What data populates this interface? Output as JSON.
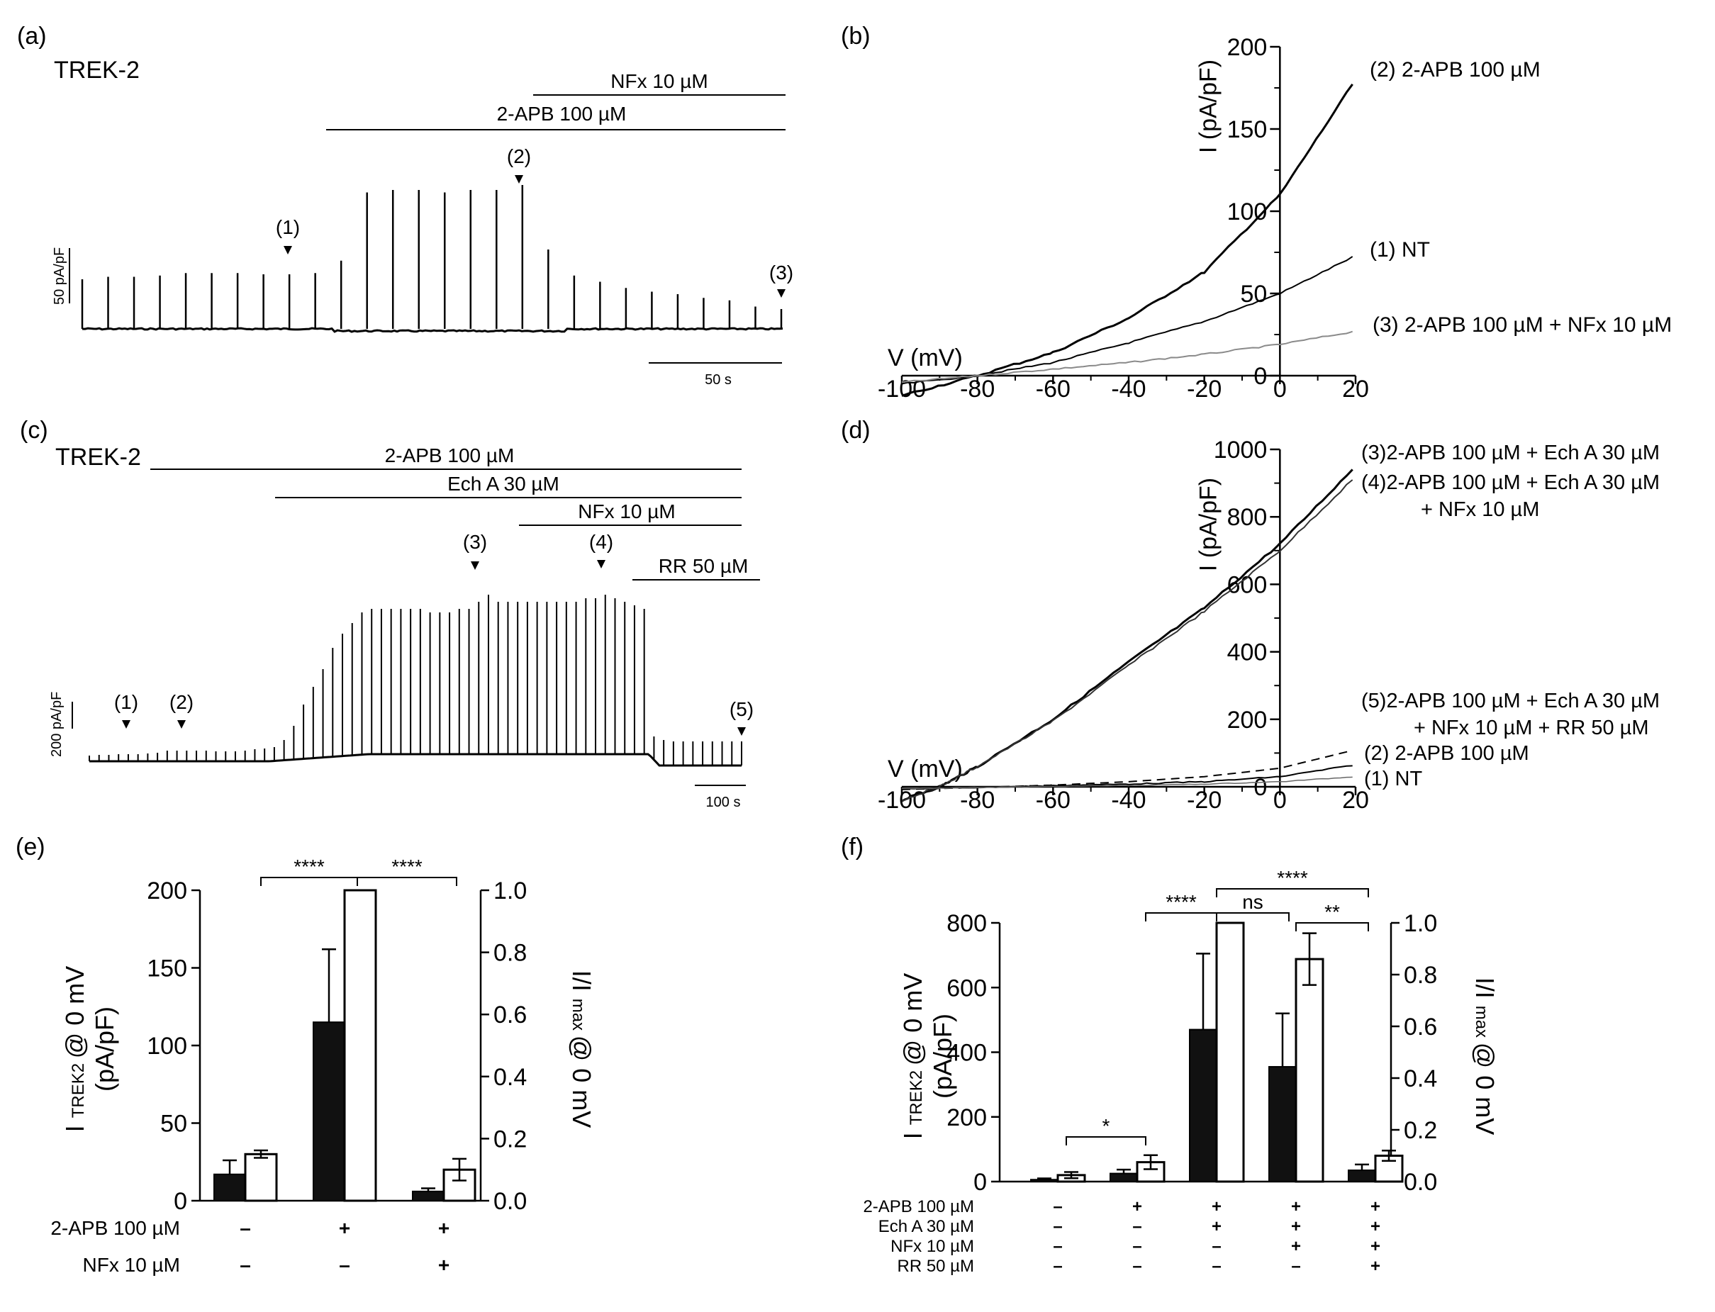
{
  "panels": {
    "a": {
      "letter": "(a)",
      "cell": "TREK-2",
      "bars": [
        {
          "label": "NFx 10 µM"
        },
        {
          "label": "2-APB 100 µM"
        }
      ],
      "markers": [
        "(1)",
        "(2)",
        "(3)"
      ],
      "scale_y": "50 pA/pF",
      "scale_x": "50 s",
      "peaks": [
        40,
        42,
        42,
        43,
        45,
        45,
        45,
        44,
        44,
        45,
        55,
        110,
        112,
        112,
        110,
        112,
        112,
        116,
        64,
        43,
        38,
        33,
        30,
        28,
        25,
        23,
        18,
        16
      ]
    },
    "b": {
      "letter": "(b)",
      "chart_data": {
        "type": "line",
        "xlabel": "V (mV)",
        "ylabel": "I (pA/pF)",
        "xlim": [
          -100,
          20
        ],
        "ylim": [
          0,
          200
        ],
        "xticks": [
          "-100",
          "-80",
          "-60",
          "-40",
          "-20",
          "0",
          "20"
        ],
        "yticks": [
          "0",
          "50",
          "100",
          "150",
          "200"
        ],
        "series": [
          {
            "name": "(2)  2-APB 100 µM",
            "x": [
              -100,
              -80,
              -60,
              -40,
              -20,
              0,
              20
            ],
            "y": [
              -12,
              0,
              14,
              35,
              63,
              110,
              180
            ]
          },
          {
            "name": "(1)  NT",
            "x": [
              -100,
              -80,
              -60,
              -40,
              -20,
              0,
              20
            ],
            "y": [
              -5,
              0,
              8,
              20,
              33,
              50,
              73
            ]
          },
          {
            "name": "(3)   2-APB 100 µM + NFx 10 µM",
            "x": [
              -100,
              -80,
              -60,
              -40,
              -20,
              0,
              20
            ],
            "y": [
              -4,
              0,
              4,
              8,
              13,
              19,
              27
            ]
          }
        ]
      }
    },
    "c": {
      "letter": "(c)",
      "cell": "TREK-2",
      "bars": [
        {
          "label": "2-APB 100 µM"
        },
        {
          "label": "Ech A 30 µM"
        },
        {
          "label": "NFx 10 µM"
        },
        {
          "label": "RR 50 µM"
        }
      ],
      "markers": [
        "(1)",
        "(2)",
        "(3)",
        "(5)"
      ],
      "marker4": "(4)",
      "scale_y": "200 pA/pF",
      "scale_x": "100 s",
      "peaks": [
        8,
        9,
        9,
        10,
        10,
        10,
        11,
        12,
        15,
        15,
        15,
        15,
        15,
        14,
        14,
        14,
        15,
        17,
        18,
        20,
        30,
        50,
        80,
        105,
        130,
        160,
        180,
        195,
        210,
        215,
        215,
        215,
        215,
        215,
        215,
        210,
        210,
        210,
        215,
        215,
        225,
        235,
        225,
        225,
        225,
        225,
        225,
        225,
        225,
        225,
        225,
        230,
        230,
        235,
        230,
        225,
        220,
        215,
        35,
        30,
        28,
        28,
        28,
        28,
        28,
        28,
        28,
        28
      ]
    },
    "d": {
      "letter": "(d)",
      "chart_data": {
        "type": "line",
        "xlabel": "V (mV)",
        "ylabel": "I (pA/pF)",
        "xlim": [
          -100,
          20
        ],
        "ylim": [
          0,
          1000
        ],
        "xticks": [
          "-100",
          "-80",
          "-60",
          "-40",
          "-20",
          "0",
          "20"
        ],
        "yticks": [
          "0",
          "200",
          "400",
          "600",
          "800",
          "1000"
        ],
        "series": [
          {
            "name": "(3)2-APB 100 µM + Ech A 30 µM",
            "x": [
              -100,
              -90,
              -80,
              -60,
              -40,
              -20,
              0,
              20
            ],
            "y": [
              -40,
              0,
              60,
              200,
              370,
              530,
              720,
              950
            ]
          },
          {
            "name": "(4)2-APB 100 µM + Ech A 30 µM",
            "name2": "+ NFx 10 µM",
            "x": [
              -100,
              -90,
              -80,
              -60,
              -40,
              -20,
              0,
              20
            ],
            "y": [
              -40,
              0,
              60,
              195,
              360,
              520,
              700,
              920
            ]
          },
          {
            "name": "(5)2-APB 100 µM + Ech A 30 µM",
            "name2": "+ NFx 10 µM + RR 50  µM",
            "x": [
              -100,
              -80,
              -60,
              -40,
              -20,
              0,
              20
            ],
            "y": [
              -8,
              -2,
              5,
              15,
              30,
              55,
              110
            ]
          },
          {
            "name": "(2) 2-APB 100 µM",
            "x": [
              -100,
              -80,
              -60,
              -40,
              -20,
              0,
              20
            ],
            "y": [
              -6,
              -2,
              3,
              8,
              15,
              30,
              65
            ]
          },
          {
            "name": "(1) NT",
            "x": [
              -100,
              -80,
              -60,
              -40,
              -20,
              0,
              20
            ],
            "y": [
              -5,
              -2,
              1,
              4,
              8,
              15,
              30
            ]
          }
        ]
      }
    },
    "e": {
      "letter": "(e)",
      "chart_data": {
        "type": "bar",
        "ylabel_main": "I",
        "ylabel_sub": "TREK2",
        "ylabel_rest": "@ 0 mV",
        "ylabel_unit": "(pA/pF)",
        "y2label_main": "I/I",
        "y2label_sub": "max",
        "y2label_rest": "@ 0 mV",
        "ylim": [
          0,
          200
        ],
        "y2lim": [
          0,
          1.0
        ],
        "yticks": [
          "0",
          "50",
          "100",
          "150",
          "200"
        ],
        "y2ticks": [
          "0.0",
          "0.2",
          "0.4",
          "0.6",
          "0.8",
          "1.0"
        ],
        "groups": [
          {
            "filled": 17,
            "filled_err": 9,
            "open": 0.15,
            "open_err": 0.012
          },
          {
            "filled": 115,
            "filled_err": 47,
            "open": 1.0,
            "open_err": 0
          },
          {
            "filled": 6,
            "filled_err": 2,
            "open": 0.1,
            "open_err": 0.035
          }
        ],
        "conditions": [
          {
            "label": "2-APB 100 µM",
            "signs": [
              "–",
              "+",
              "+"
            ]
          },
          {
            "label": "NFx 10 µM",
            "signs": [
              "–",
              "–",
              "+"
            ]
          }
        ],
        "significance": [
          "****",
          "****"
        ]
      }
    },
    "f": {
      "letter": "(f)",
      "chart_data": {
        "type": "bar",
        "ylabel_main": "I",
        "ylabel_sub": "TREK2",
        "ylabel_rest": "@ 0 mV",
        "ylabel_unit": "(pA/pF)",
        "y2label_main": "I/I",
        "y2label_sub": "max",
        "y2label_rest": "@ 0 mV",
        "ylim": [
          0,
          800
        ],
        "y2lim": [
          0,
          1.0
        ],
        "yticks": [
          "0",
          "200",
          "400",
          "600",
          "800"
        ],
        "y2ticks": [
          "0.0",
          "0.2",
          "0.4",
          "0.6",
          "0.8",
          "1.0"
        ],
        "groups": [
          {
            "filled": 6,
            "filled_err": 4,
            "open": 0.025,
            "open_err": 0.012
          },
          {
            "filled": 25,
            "filled_err": 12,
            "open": 0.075,
            "open_err": 0.027
          },
          {
            "filled": 470,
            "filled_err": 235,
            "open": 1.0,
            "open_err": 0
          },
          {
            "filled": 355,
            "filled_err": 165,
            "open": 0.86,
            "open_err": 0.1
          },
          {
            "filled": 35,
            "filled_err": 18,
            "open": 0.1,
            "open_err": 0.02
          }
        ],
        "conditions": [
          {
            "label": "2-APB 100 µM",
            "signs": [
              "–",
              "+",
              "+",
              "+",
              "+"
            ]
          },
          {
            "label": "Ech A 30 µM",
            "signs": [
              "–",
              "–",
              "+",
              "+",
              "+"
            ]
          },
          {
            "label": "NFx 10 µM",
            "signs": [
              "–",
              "–",
              "–",
              "+",
              "+"
            ]
          },
          {
            "label": "RR 50 µM",
            "signs": [
              "–",
              "–",
              "–",
              "–",
              "+"
            ]
          }
        ],
        "significance": [
          "*",
          "****",
          "ns",
          "****",
          "**"
        ]
      }
    }
  },
  "chart_data": [
    {
      "type": "line",
      "title": "(b)",
      "xlabel": "V (mV)",
      "ylabel": "I (pA/pF)"
    },
    {
      "type": "line",
      "title": "(d)",
      "xlabel": "V (mV)",
      "ylabel": "I (pA/pF)"
    },
    {
      "type": "bar",
      "title": "(e)"
    },
    {
      "type": "bar",
      "title": "(f)"
    }
  ]
}
